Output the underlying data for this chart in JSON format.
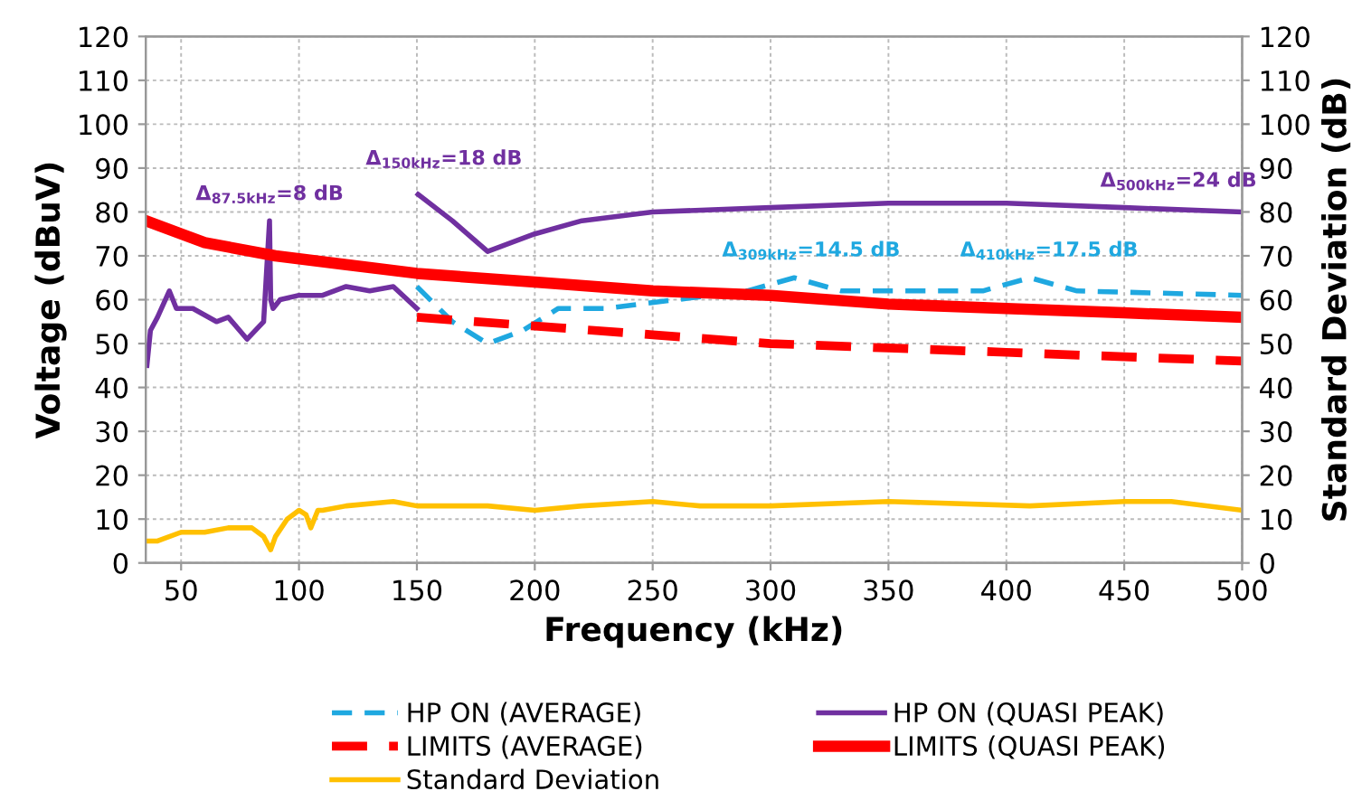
{
  "chart_data": {
    "type": "line",
    "xlabel": "Frequency (kHz)",
    "ylabel": "Voltage (dBuV)",
    "y2label": "Standard Deviation (dB)",
    "xlim": [
      35,
      500
    ],
    "xticks": [
      50,
      100,
      150,
      200,
      250,
      300,
      350,
      400,
      450,
      500
    ],
    "ylim": [
      0,
      120
    ],
    "yticks": [
      0,
      10,
      20,
      30,
      40,
      50,
      60,
      70,
      80,
      90,
      100,
      110,
      120
    ],
    "y2lim": [
      0,
      120
    ],
    "y2ticks": [
      0,
      10,
      20,
      30,
      40,
      50,
      60,
      70,
      80,
      90,
      100,
      110,
      120
    ],
    "grid": true,
    "legend": "bottom",
    "series": [
      {
        "name": "HP ON (AVERAGE)",
        "color": "#1fa8e0",
        "line_style": "dashed",
        "x": [
          150,
          165,
          180,
          195,
          210,
          230,
          260,
          290,
          310,
          330,
          390,
          410,
          430,
          500
        ],
        "values": [
          63,
          55,
          50,
          53,
          58,
          58,
          60,
          62,
          65,
          62,
          62,
          65,
          62,
          61
        ]
      },
      {
        "name": "HP ON (QUASI PEAK)",
        "color": "#7030a0",
        "line_style": "solid",
        "x": [
          35.5,
          37,
          40,
          45,
          48,
          55,
          65,
          70,
          78,
          85,
          87.5,
          88,
          89,
          92,
          100,
          110,
          120,
          130,
          140,
          150,
          null,
          150.5,
          165,
          180,
          200,
          220,
          250,
          300,
          350,
          400,
          450,
          500
        ],
        "values": [
          45,
          53,
          56,
          62,
          58,
          58,
          55,
          56,
          51,
          55,
          78,
          60,
          58,
          60,
          61,
          61,
          63,
          62,
          63,
          58,
          null,
          84,
          78,
          71,
          75,
          78,
          80,
          81,
          82,
          82,
          81,
          80
        ]
      },
      {
        "name": "LIMITS (AVERAGE)",
        "color": "#ff0000",
        "line_style": "dashed",
        "x": [
          150,
          200,
          250,
          300,
          350,
          400,
          450,
          500
        ],
        "values": [
          56,
          54,
          52,
          50,
          49,
          48,
          47,
          46
        ]
      },
      {
        "name": "LIMITS (QUASI PEAK)",
        "color": "#ff0000",
        "line_style": "solid",
        "x": [
          35,
          60,
          90,
          120,
          150,
          200,
          250,
          300,
          350,
          400,
          450,
          500
        ],
        "values": [
          78,
          73,
          70,
          68,
          66,
          64,
          62,
          61,
          59,
          58,
          57,
          56
        ]
      },
      {
        "name": "Standard Deviation",
        "color": "#ffc000",
        "line_style": "solid",
        "axis": "y2",
        "x": [
          35,
          40,
          50,
          60,
          70,
          80,
          85,
          88,
          90,
          95,
          100,
          103,
          105,
          108,
          110,
          120,
          140,
          150,
          180,
          200,
          220,
          250,
          270,
          300,
          350,
          410,
          450,
          470,
          500
        ],
        "values": [
          5,
          5,
          7,
          7,
          8,
          8,
          6,
          3,
          6,
          10,
          12,
          11,
          8,
          12,
          12,
          13,
          14,
          13,
          13,
          12,
          13,
          14,
          13,
          13,
          14,
          13,
          14,
          14,
          12
        ]
      }
    ],
    "annotations": [
      "Δ$_{87.5kHz}$=8 dB",
      "Δ$_{150kHz}$=18 dB",
      "Δ$_{309kHz}$=14.5 dB",
      "Δ$_{410kHz}$=17.5 dB",
      "Δ$_{500kHz}$=24 dB"
    ]
  }
}
